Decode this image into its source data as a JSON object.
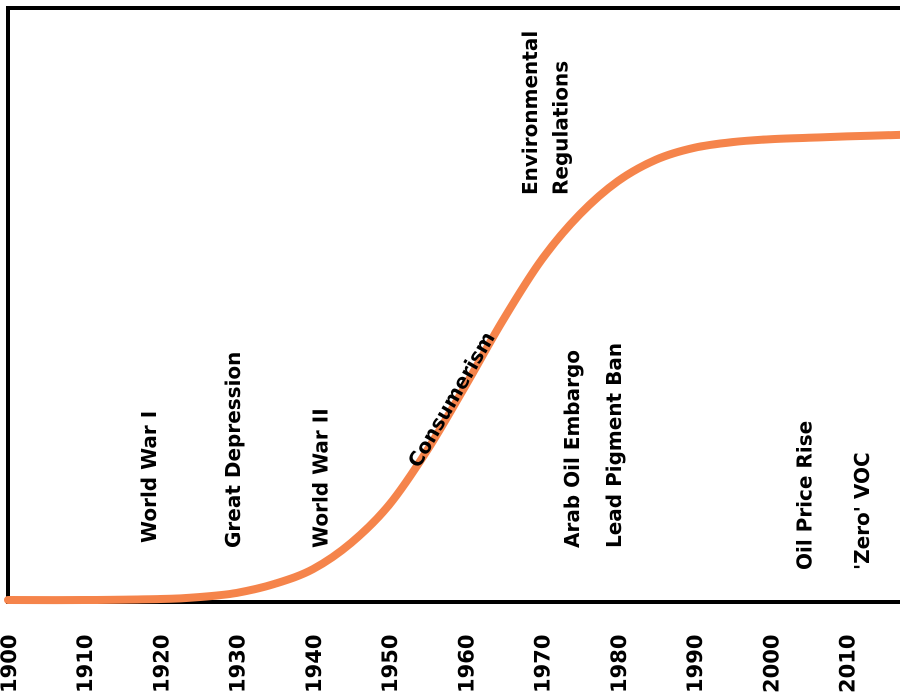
{
  "chart_data": {
    "type": "line",
    "title": "",
    "xlabel": "",
    "ylabel": "",
    "xlim": [
      1900,
      2017
    ],
    "ylim": [
      0,
      1
    ],
    "x_ticks": [
      "1900",
      "1910",
      "1920",
      "1930",
      "1940",
      "1950",
      "1960",
      "1970",
      "1980",
      "1990",
      "2000",
      "2010"
    ],
    "y_ticks_shown": false,
    "grid": false,
    "legend": "none",
    "series": [
      {
        "color": "#f5844b",
        "x": [
          1900,
          1910,
          1920,
          1925,
          1930,
          1935,
          1940,
          1945,
          1950,
          1955,
          1960,
          1965,
          1970,
          1975,
          1980,
          1985,
          1990,
          1995,
          2000,
          2005,
          2010,
          2017
        ],
        "y": [
          0.0,
          0.0,
          0.002,
          0.006,
          0.015,
          0.034,
          0.065,
          0.12,
          0.2,
          0.315,
          0.45,
          0.59,
          0.715,
          0.81,
          0.88,
          0.925,
          0.95,
          0.962,
          0.968,
          0.971,
          0.974,
          0.977
        ]
      }
    ],
    "annotations": [
      {
        "id": "wwi",
        "text": "World War I",
        "x": 1918.5
      },
      {
        "id": "depression",
        "text": "Great Depression",
        "x": 1929.5
      },
      {
        "id": "wwii",
        "text": "World War II",
        "x": 1941
      },
      {
        "id": "consumerism",
        "text": "Consumerism",
        "x": 1953
      },
      {
        "id": "env-reg-1",
        "text": "Environmental",
        "x": 1968.5
      },
      {
        "id": "env-reg-2",
        "text": "Regulations",
        "x": 1972.5
      },
      {
        "id": "arab-oil",
        "text": "Arab Oil Embargo",
        "x": 1974
      },
      {
        "id": "lead-ban",
        "text": "Lead Pigment Ban",
        "x": 1979.5
      },
      {
        "id": "oil-price",
        "text": "Oil Price Rise",
        "x": 2004.5
      },
      {
        "id": "zero-voc",
        "text": "'Zero' VOC",
        "x": 2012
      }
    ]
  }
}
